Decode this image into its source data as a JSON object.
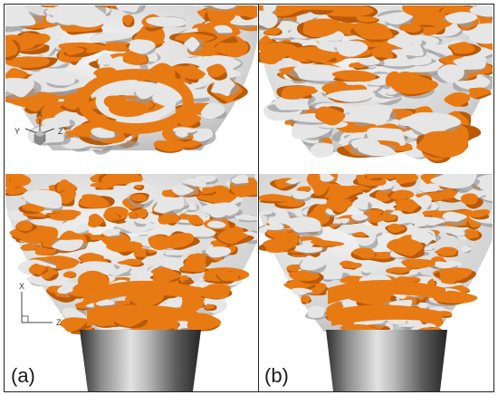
{
  "figure": {
    "panels": [
      {
        "label": "(a)"
      },
      {
        "label": "(b)"
      }
    ],
    "triad_3d": {
      "x": "X",
      "y": "Y",
      "z": "Z"
    },
    "triad_2d": {
      "x": "X",
      "z": "Z"
    },
    "colors": {
      "orange": "#e87a14",
      "orange_dark": "#b85a08",
      "white_surface": "#e6e6e6",
      "white_shadow": "#9a9a9a",
      "divider": "#222222",
      "nozzle_light": "#d8d8d8",
      "nozzle_dark": "#3a3a3a"
    }
  }
}
